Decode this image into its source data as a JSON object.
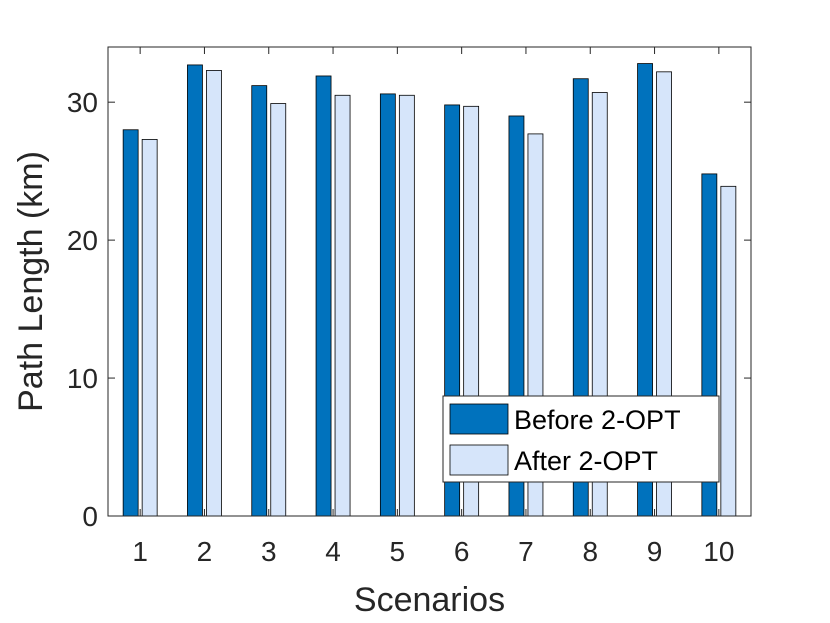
{
  "chart_data": {
    "type": "bar",
    "title": "",
    "xlabel": "Scenarios",
    "ylabel": "Path Length (km)",
    "categories": [
      "1",
      "2",
      "3",
      "4",
      "5",
      "6",
      "7",
      "8",
      "9",
      "10"
    ],
    "yticks": [
      "0",
      "10",
      "20",
      "30"
    ],
    "ylim": [
      0,
      34
    ],
    "grid": false,
    "legend_position": "bottom-right",
    "series": [
      {
        "name": "Before 2-OPT",
        "color": "#0072BD",
        "values": [
          28.0,
          32.7,
          31.2,
          31.9,
          30.6,
          29.8,
          29.0,
          31.7,
          32.8,
          24.8
        ]
      },
      {
        "name": "After 2-OPT",
        "color": "#D6E5FA",
        "values": [
          27.3,
          32.3,
          29.9,
          30.5,
          30.5,
          29.7,
          27.7,
          30.7,
          32.2,
          23.9
        ]
      }
    ]
  }
}
